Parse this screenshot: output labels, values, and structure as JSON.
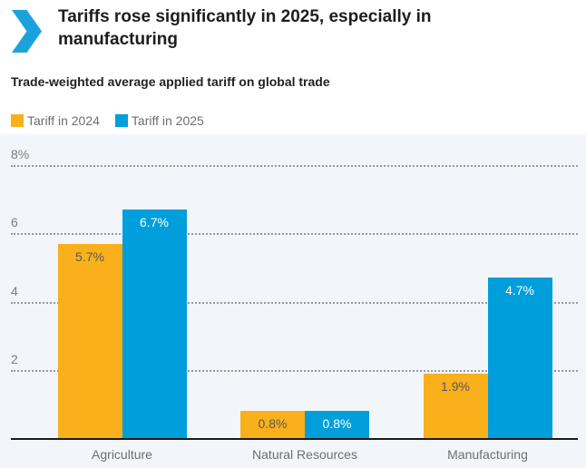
{
  "header": {
    "title": "Tariffs rose significantly in 2025, especially in manufacturing",
    "subtitle": "Trade-weighted average applied tariff on global trade"
  },
  "legend": {
    "items": [
      {
        "label": "Tariff in 2024",
        "color": "#F9B01B"
      },
      {
        "label": "Tariff in 2025",
        "color": "#009EDB"
      }
    ]
  },
  "colors": {
    "chevron_blue": "#1BA2DC",
    "orange_series": "#F9B01B",
    "blue_series": "#009EDB",
    "plot_background": "#F2F6FA",
    "gridline": "#97999B",
    "axis_line": "#1A1A1A",
    "label_on_orange": "#58595B",
    "label_on_blue": "#FFFFFF"
  },
  "chart_data": {
    "type": "bar",
    "title": "Tariffs rose significantly in 2025, especially in manufacturing",
    "subtitle": "Trade-weighted average applied tariff on global trade",
    "categories": [
      "Agriculture",
      "Natural Resources",
      "Manufacturing"
    ],
    "series": [
      {
        "name": "Tariff in 2024",
        "color": "#F9B01B",
        "label_color": "#58595B",
        "values": [
          5.7,
          0.8,
          1.9
        ]
      },
      {
        "name": "Tariff in 2025",
        "color": "#009EDB",
        "label_color": "#FFFFFF",
        "values": [
          6.7,
          0.8,
          4.7
        ]
      }
    ],
    "value_labels": [
      [
        "5.7%",
        "0.8%",
        "1.9%"
      ],
      [
        "6.7%",
        "0.8%",
        "4.7%"
      ]
    ],
    "yticks": [
      {
        "label": "8%",
        "value": 8
      },
      {
        "label": "6",
        "value": 6
      },
      {
        "label": "4",
        "value": 4
      },
      {
        "label": "2",
        "value": 2
      }
    ],
    "ylim": [
      0,
      8
    ],
    "xlabel": "",
    "ylabel": "",
    "grid": "horizontal-dotted",
    "legend_position": "top-left"
  }
}
